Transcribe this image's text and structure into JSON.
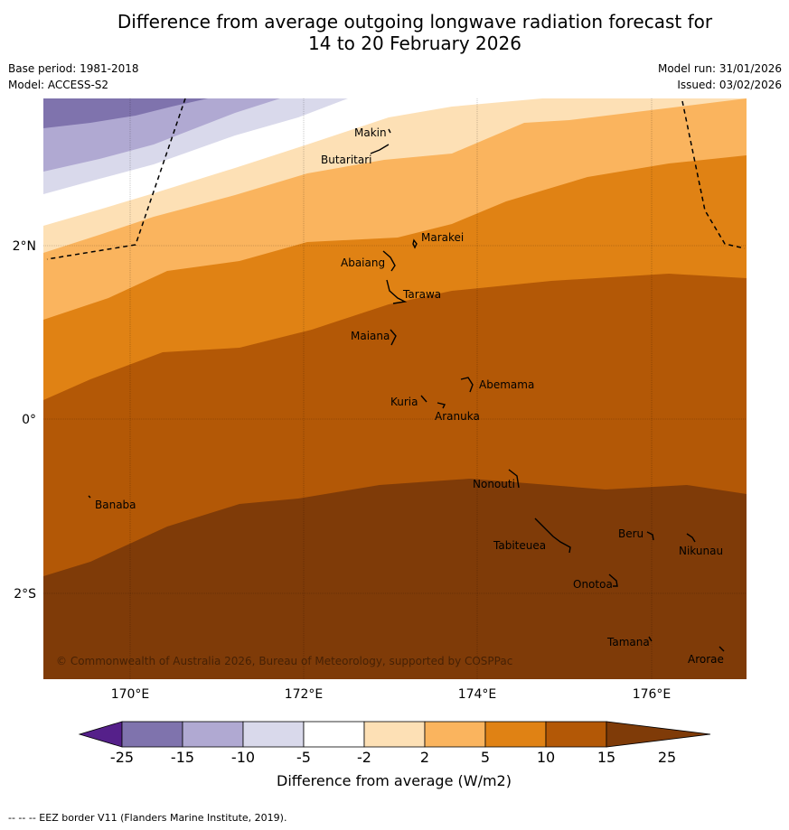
{
  "title_line1": "Difference from average outgoing longwave radiation forecast for",
  "title_line2": "14 to 20 February 2026",
  "meta": {
    "base_period": "Base period: 1981-2018",
    "model": "Model: ACCESS-S2",
    "model_run": "Model run: 31/01/2026",
    "issued": "Issued: 03/02/2026"
  },
  "axes": {
    "lat_labels": [
      "2°N",
      "0°",
      "2°S"
    ],
    "lon_labels": [
      "170°E",
      "172°E",
      "174°E",
      "176°E"
    ]
  },
  "copyright": "© Commonwealth of Australia 2026, Bureau of Meteorology, supported by COSPPac",
  "islands": [
    {
      "name": "Makin"
    },
    {
      "name": "Butaritari"
    },
    {
      "name": "Marakei"
    },
    {
      "name": "Abaiang"
    },
    {
      "name": "Tarawa"
    },
    {
      "name": "Maiana"
    },
    {
      "name": "Abemama"
    },
    {
      "name": "Kuria"
    },
    {
      "name": "Aranuka"
    },
    {
      "name": "Banaba"
    },
    {
      "name": "Nonouti"
    },
    {
      "name": "Beru"
    },
    {
      "name": "Tabiteuea"
    },
    {
      "name": "Nikunau"
    },
    {
      "name": "Onotoa"
    },
    {
      "name": "Tamana"
    },
    {
      "name": "Arorae"
    }
  ],
  "colorbar": {
    "ticks": [
      "-25",
      "-15",
      "-10",
      "-5",
      "-2",
      "2",
      "5",
      "10",
      "15",
      "25"
    ],
    "colors": [
      "#55208a",
      "#7f73ad",
      "#b0a9d2",
      "#d9d9eb",
      "#ffffff",
      "#fde0b5",
      "#fab45e",
      "#e08214",
      "#b35806",
      "#7f3b08"
    ],
    "label": "Difference from average (W/m2)"
  },
  "footer": "--  --  -- EEZ border V11 (Flanders Marine Institute, 2019)."
}
